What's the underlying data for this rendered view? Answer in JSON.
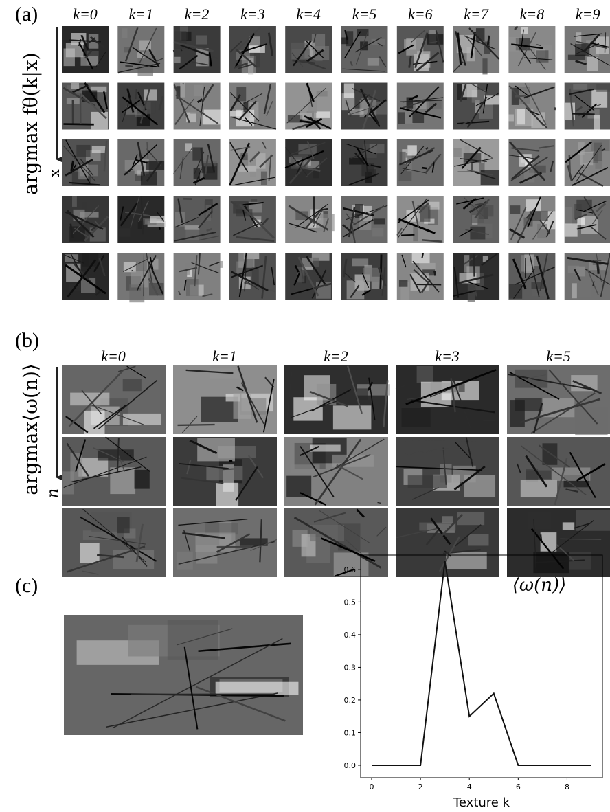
{
  "panels": [
    {
      "label": "(a)",
      "y_label": "argmax fθ(k|x)",
      "y_sub": "x",
      "column_labels": [
        "k=0",
        "k=1",
        "k=2",
        "k=3",
        "k=4",
        "k=5",
        "k=6",
        "k=7",
        "k=8",
        "k=9"
      ]
    },
    {
      "label": "(b)",
      "y_label": "argmax⟨ω(n)⟩",
      "y_sub": "n",
      "column_labels": [
        "k=0",
        "k=1",
        "k=2",
        "k=3",
        "k=5"
      ]
    },
    {
      "label": "(c)"
    }
  ],
  "chart_data": {
    "type": "line",
    "annotation": "⟨ω(n)⟩",
    "x_label": "Texture k",
    "color": "#111111",
    "x": [
      0,
      1,
      2,
      3,
      4,
      5,
      6,
      7,
      8,
      9
    ],
    "values": [
      0,
      0,
      0,
      0.625,
      0.15,
      0.22,
      0,
      0,
      0,
      0
    ],
    "xlim": [
      -0.45,
      9.45
    ],
    "ylim": [
      -0.038,
      0.644
    ],
    "xticks": [
      0,
      2,
      4,
      6,
      8
    ],
    "yticks": [
      {
        "value": 0,
        "label": "0.0"
      },
      {
        "value": 0.1,
        "label": "0.1"
      },
      {
        "value": 0.2,
        "label": "0.2"
      },
      {
        "value": 0.3,
        "label": "0.3"
      },
      {
        "value": 0.4,
        "label": "0.4"
      },
      {
        "value": 0.5,
        "label": "0.5"
      },
      {
        "value": 0.6,
        "label": "0.6"
      }
    ]
  }
}
